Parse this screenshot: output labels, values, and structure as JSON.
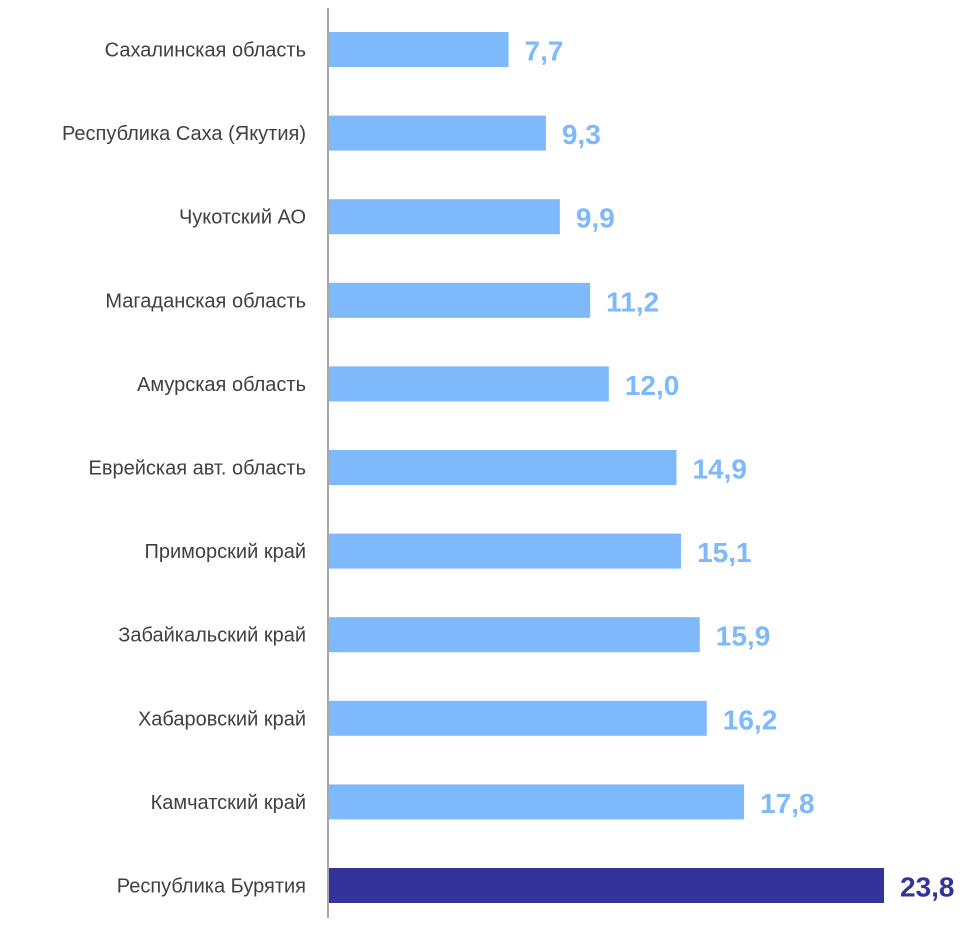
{
  "chart_data": {
    "type": "bar",
    "orientation": "horizontal",
    "categories": [
      "Сахалинская область",
      "Республика Саха (Якутия)",
      "Чукотский АО",
      "Магаданская область",
      "Амурская область",
      "Еврейская авт. область",
      "Приморский край",
      "Забайкальский край",
      "Хабаровский край",
      "Камчатский край",
      "Республика Бурятия"
    ],
    "values": [
      7.7,
      9.3,
      9.9,
      11.2,
      12.0,
      14.9,
      15.1,
      15.9,
      16.2,
      17.8,
      23.8
    ],
    "value_labels": [
      "7,7",
      "9,3",
      "9,9",
      "11,2",
      "12,0",
      "14,9",
      "15,1",
      "15,9",
      "16,2",
      "17,8",
      "23,8"
    ],
    "highlight_index": 10,
    "xlim": [
      0,
      23.8
    ],
    "grid": false,
    "title": "",
    "xlabel": "",
    "ylabel": "",
    "colors": {
      "bar": "#7DB9FB",
      "highlight_bar": "#333399",
      "label": "#404040",
      "axis": "#A6A6A6"
    }
  }
}
